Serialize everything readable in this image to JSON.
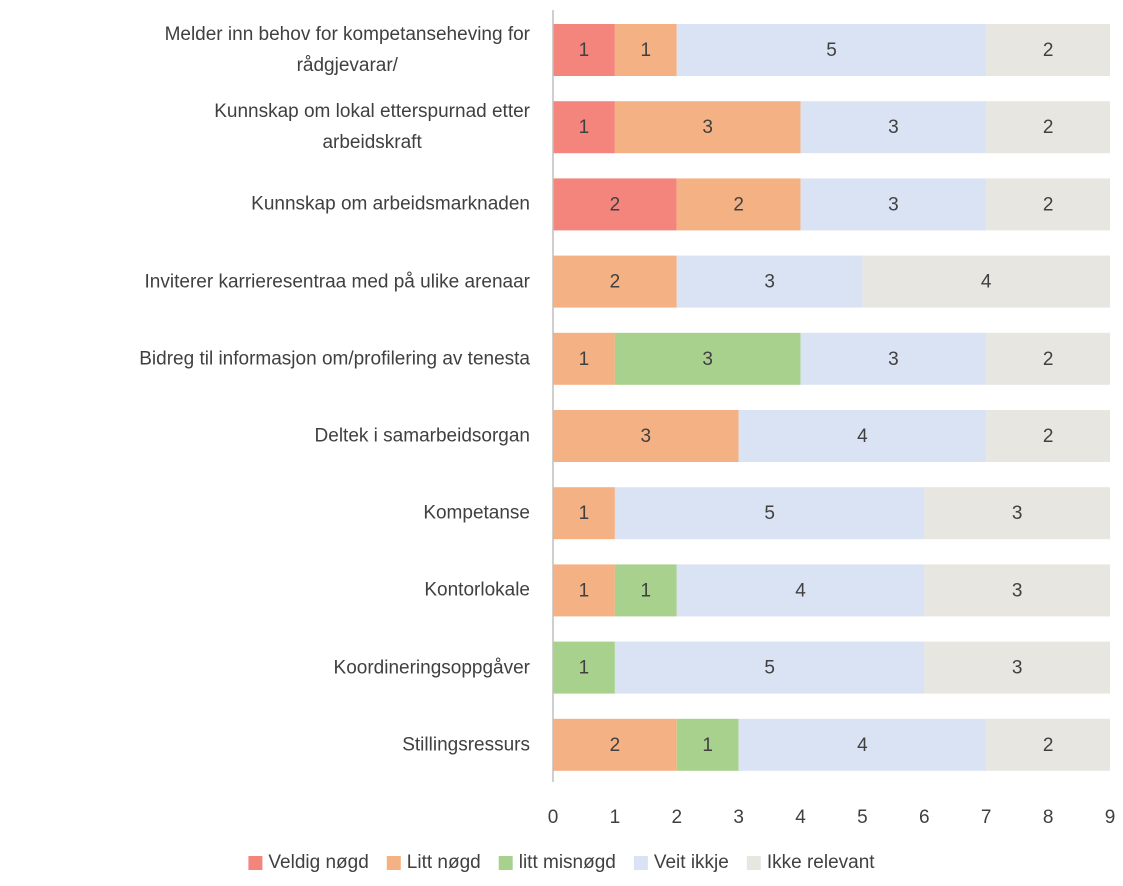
{
  "chart_data": {
    "type": "stacked-barh",
    "categories": [
      "Melder inn behov for kompetanseheving for\nrådgjevarar/",
      "Kunnskap om lokal etterspurnad etter\narbeidskraft",
      "Kunnskap om arbeidsmarknaden",
      "Inviterer karrieresentraa med på ulike arenaar",
      "Bidreg til informasjon om/profilering av tenesta",
      "Deltek i samarbeidsorgan",
      "Kompetanse",
      "Kontorlokale",
      "Koordineringsoppgåver",
      "Stillingsressurs"
    ],
    "series": [
      {
        "name": "Veldig nøgd",
        "color": "#f4857c",
        "values": [
          1,
          1,
          2,
          null,
          null,
          null,
          null,
          null,
          null,
          null
        ]
      },
      {
        "name": "Litt nøgd",
        "color": "#f4b183",
        "values": [
          1,
          3,
          2,
          2,
          1,
          3,
          1,
          1,
          null,
          2
        ]
      },
      {
        "name": "litt misnøgd",
        "color": "#a9d18e",
        "values": [
          null,
          null,
          null,
          null,
          3,
          null,
          null,
          1,
          1,
          1
        ]
      },
      {
        "name": "Veit ikkje",
        "color": "#dae3f3",
        "values": [
          5,
          3,
          3,
          3,
          3,
          4,
          5,
          4,
          5,
          4
        ]
      },
      {
        "name": "Ikke relevant",
        "color": "#e7e6e1",
        "values": [
          2,
          2,
          2,
          4,
          2,
          2,
          3,
          3,
          3,
          2
        ]
      }
    ],
    "xlim": [
      0,
      9
    ],
    "xticks": [
      0,
      1,
      2,
      3,
      4,
      5,
      6,
      7,
      8,
      9
    ],
    "legend": "bottom"
  }
}
